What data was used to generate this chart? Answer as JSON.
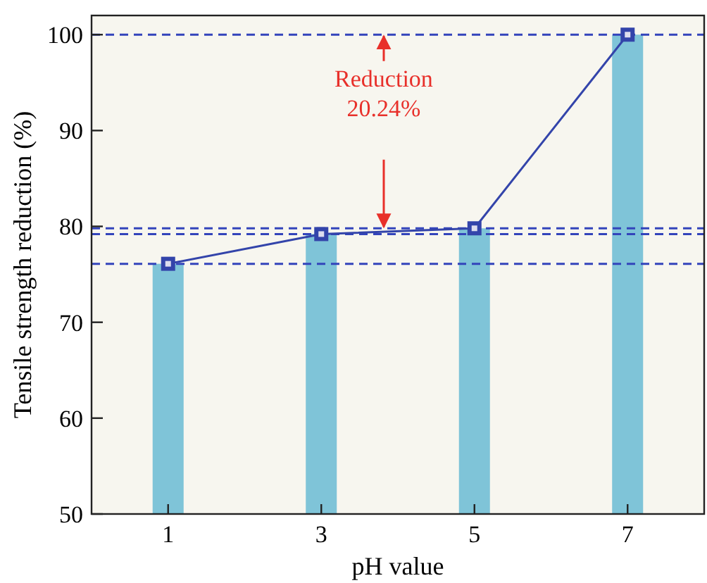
{
  "chart_data": {
    "type": "bar",
    "xlabel": "pH value",
    "ylabel": "Tensile strength reduction (%)",
    "categories": [
      "1",
      "3",
      "5",
      "7"
    ],
    "series": [
      {
        "color": "#7fc4d8",
        "values": [
          76.1,
          79.2,
          79.8,
          100
        ]
      },
      {
        "type": "line",
        "color": "#3344aa",
        "marker": "square",
        "line_style": "solid",
        "values": [
          76.1,
          79.2,
          79.8,
          100
        ]
      }
    ],
    "ylim": [
      50,
      102
    ],
    "yticks": [
      50,
      60,
      70,
      80,
      90,
      100
    ],
    "grid": false,
    "ref_lines": [
      {
        "axis": "y",
        "value": 100,
        "color": "#3344bb",
        "line_style": "dashed"
      },
      {
        "axis": "y",
        "value": 79.8,
        "color": "#3344bb",
        "line_style": "dashed"
      },
      {
        "axis": "y",
        "value": 79.2,
        "color": "#3344bb",
        "line_style": "dashed"
      },
      {
        "axis": "y",
        "value": 76.1,
        "color": "#3344bb",
        "line_style": "dashed"
      }
    ],
    "annotations": [
      {
        "text": "Reduction 20.24%",
        "y": 100
      }
    ]
  }
}
